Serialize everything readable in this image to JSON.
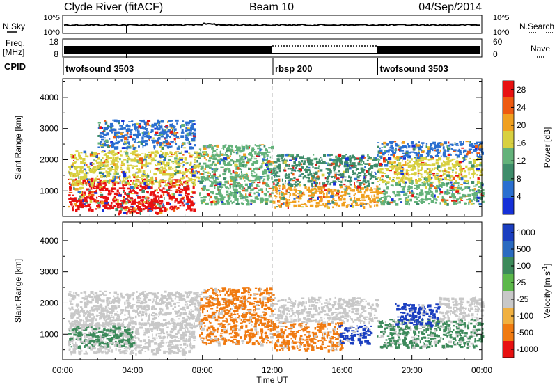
{
  "header": {
    "station": "Clyde River (fitACF)",
    "beam": "Beam 10",
    "date": "04/Sep/2014"
  },
  "top_panels": {
    "nsky_label": "N.Sky",
    "nsky_ticks": [
      "10^5",
      "10^0"
    ],
    "nsearch_label": "N.Search",
    "nsearch_ticks": [
      "10^5",
      "10^0"
    ],
    "freq_label": "Freq.",
    "freq_unit": "[MHz]",
    "freq_ticks": [
      "18",
      "8"
    ],
    "nave_label": "Nave",
    "nave_ticks": [
      "60",
      "0"
    ],
    "cpid_label": "CPID",
    "cpid_segments": [
      {
        "name": "twofsound 3503",
        "start_hour": 0,
        "end_hour": 12
      },
      {
        "name": "rbsp 200",
        "start_hour": 12,
        "end_hour": 18
      },
      {
        "name": "twofsound 3503",
        "start_hour": 18,
        "end_hour": 24
      }
    ]
  },
  "chart_data": [
    {
      "type": "heatmap",
      "title": "Power",
      "xlabel": "Time UT",
      "ylabel": "Slant Range [km]",
      "x_ticks": [
        "00:00",
        "04:00",
        "08:00",
        "12:00",
        "16:00",
        "20:00",
        "00:00"
      ],
      "xlim_hours": [
        0,
        24
      ],
      "y_ticks": [
        1000,
        2000,
        3000,
        4000
      ],
      "ylim": [
        180,
        4600
      ],
      "colorbar": {
        "label": "Power [dB]",
        "ticks": [
          4,
          8,
          12,
          16,
          20,
          24,
          28
        ],
        "range": [
          0,
          30
        ],
        "colors": [
          "#1530d8",
          "#2a6fd0",
          "#3e8c6a",
          "#63b27a",
          "#d8d040",
          "#f0a020",
          "#ee5a10",
          "#e81010"
        ]
      },
      "echo_regions": [
        {
          "t0": 0.3,
          "t1": 7.5,
          "r0": 400,
          "r1": 1400,
          "level": 27
        },
        {
          "t0": 3.0,
          "t1": 5.6,
          "r0": 300,
          "r1": 750,
          "level": 30
        },
        {
          "t0": 0.3,
          "t1": 7.8,
          "r0": 1200,
          "r1": 2300,
          "level": 16
        },
        {
          "t0": 2.0,
          "t1": 7.5,
          "r0": 2400,
          "r1": 3300,
          "level": 6
        },
        {
          "t0": 7.8,
          "t1": 12.0,
          "r0": 600,
          "r1": 2500,
          "level": 13
        },
        {
          "t0": 12.0,
          "t1": 18.0,
          "r0": 500,
          "r1": 1200,
          "level": 20
        },
        {
          "t0": 12.0,
          "t1": 18.0,
          "r0": 1200,
          "r1": 2200,
          "level": 10
        },
        {
          "t0": 18.0,
          "t1": 24.0,
          "r0": 600,
          "r1": 1300,
          "level": 14
        },
        {
          "t0": 18.0,
          "t1": 24.0,
          "r0": 1300,
          "r1": 2100,
          "level": 18
        },
        {
          "t0": 18.0,
          "t1": 24.0,
          "r0": 2100,
          "r1": 2600,
          "level": 6
        }
      ]
    },
    {
      "type": "heatmap",
      "title": "Velocity",
      "xlabel": "Time UT",
      "ylabel": "Slant Range [km]",
      "x_ticks": [
        "00:00",
        "04:00",
        "08:00",
        "12:00",
        "16:00",
        "20:00",
        "00:00"
      ],
      "xlim_hours": [
        0,
        24
      ],
      "y_ticks": [
        1000,
        2000,
        3000,
        4000
      ],
      "ylim": [
        180,
        4600
      ],
      "colorbar": {
        "label": "Velocity [m s^-1]",
        "ticks": [
          "1000",
          "500",
          "100",
          "25",
          "-25",
          "-100",
          "-500",
          "-1000"
        ],
        "colors": [
          "#1a3ec0",
          "#2a6ac0",
          "#3c8a5a",
          "#5cb84a",
          "#c8c8c8",
          "#f0b040",
          "#f07a10",
          "#e81010"
        ]
      },
      "echo_regions": [
        {
          "t0": 0.3,
          "t1": 7.5,
          "r0": 400,
          "r1": 1400,
          "level": "ground-scatter"
        },
        {
          "t0": 0.3,
          "t1": 4.0,
          "r0": 600,
          "r1": 1300,
          "level": 250
        },
        {
          "t0": 0.3,
          "t1": 7.8,
          "r0": 1300,
          "r1": 2400,
          "level": "ground-scatter"
        },
        {
          "t0": 7.8,
          "t1": 12.0,
          "r0": 700,
          "r1": 2500,
          "level": -200
        },
        {
          "t0": 12.0,
          "t1": 16.0,
          "r0": 500,
          "r1": 1400,
          "level": -200
        },
        {
          "t0": 15.8,
          "t1": 17.6,
          "r0": 700,
          "r1": 1300,
          "level": 800
        },
        {
          "t0": 12.0,
          "t1": 18.0,
          "r0": 1400,
          "r1": 2200,
          "level": "ground-scatter"
        },
        {
          "t0": 18.0,
          "t1": 24.0,
          "r0": 600,
          "r1": 1500,
          "level": 150
        },
        {
          "t0": 19.0,
          "t1": 21.5,
          "r0": 1300,
          "r1": 2000,
          "level": 900
        },
        {
          "t0": 21.5,
          "t1": 24.0,
          "r0": 1500,
          "r1": 2200,
          "level": "ground-scatter"
        }
      ]
    }
  ]
}
